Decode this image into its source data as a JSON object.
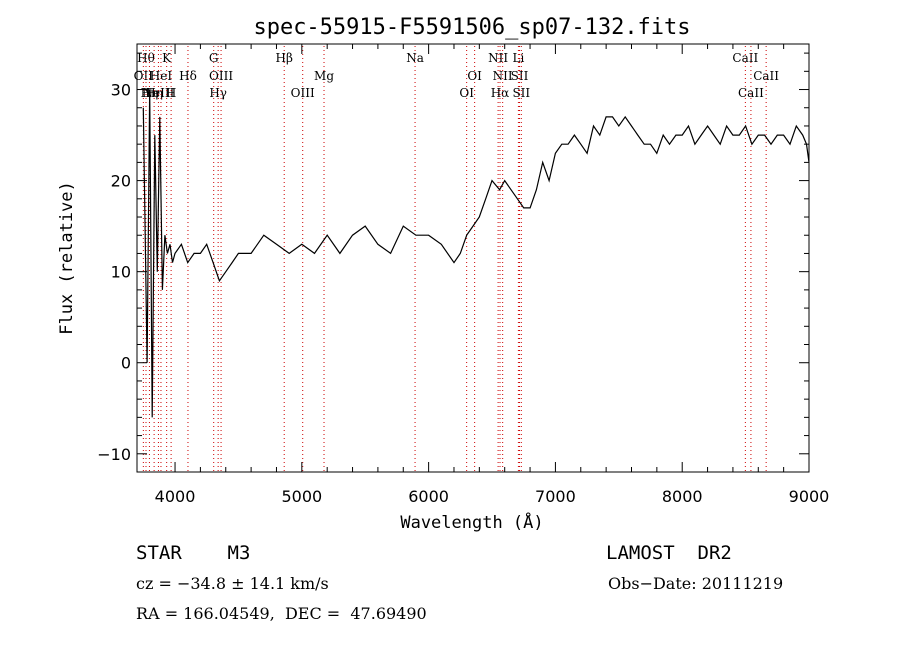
{
  "chart_data": {
    "type": "line",
    "title": "spec-55915-F5591506_sp07-132.fits",
    "xlabel": "Wavelength (Å)",
    "ylabel": "Flux (relative)",
    "xlim": [
      3700,
      9000
    ],
    "ylim": [
      -12,
      35
    ],
    "x_ticks": [
      4000,
      5000,
      6000,
      7000,
      8000,
      9000
    ],
    "y_ticks": [
      -10,
      0,
      10,
      20,
      30
    ],
    "y_tick_labels": [
      "−10",
      "0",
      "10",
      "20",
      "30"
    ],
    "grid": false,
    "line_color": "#000000",
    "marker_color": "#cc0000",
    "series": [
      {
        "x": [
          3750,
          3780,
          3800,
          3820,
          3840,
          3860,
          3880,
          3900,
          3920,
          3940,
          3960,
          3980,
          4000,
          4050,
          4100,
          4150,
          4200,
          4250,
          4300,
          4350,
          4400,
          4450,
          4500,
          4600,
          4700,
          4800,
          4900,
          5000,
          5100,
          5200,
          5300,
          5400,
          5500,
          5600,
          5700,
          5800,
          5900,
          6000,
          6100,
          6200,
          6250,
          6300,
          6350,
          6400,
          6450,
          6500,
          6560,
          6600,
          6650,
          6700,
          6750,
          6800,
          6850,
          6900,
          6950,
          7000,
          7050,
          7100,
          7150,
          7200,
          7250,
          7300,
          7350,
          7400,
          7450,
          7500,
          7550,
          7600,
          7650,
          7700,
          7750,
          7800,
          7850,
          7900,
          7950,
          8000,
          8050,
          8100,
          8150,
          8200,
          8250,
          8300,
          8350,
          8400,
          8450,
          8500,
          8550,
          8600,
          8650,
          8700,
          8750,
          8800,
          8850,
          8900,
          8950,
          8980,
          9000
        ],
        "y": [
          28,
          0,
          30,
          -6,
          25,
          10,
          27,
          8,
          14,
          12,
          13,
          11,
          12,
          13,
          11,
          12,
          12,
          13,
          11,
          9,
          10,
          11,
          12,
          12,
          14,
          13,
          12,
          13,
          12,
          14,
          12,
          14,
          15,
          13,
          12,
          15,
          14,
          14,
          13,
          11,
          12,
          14,
          15,
          16,
          18,
          20,
          19,
          20,
          19,
          18,
          17,
          17,
          19,
          22,
          20,
          23,
          24,
          24,
          25,
          24,
          23,
          26,
          25,
          27,
          27,
          26,
          27,
          26,
          25,
          24,
          24,
          23,
          25,
          24,
          25,
          25,
          26,
          24,
          25,
          26,
          25,
          24,
          26,
          25,
          25,
          26,
          24,
          25,
          25,
          24,
          25,
          25,
          24,
          26,
          25,
          24,
          22
        ]
      }
    ],
    "markers": [
      {
        "wl": 3750,
        "label": "OII",
        "row": 2
      },
      {
        "wl": 3771,
        "label": "Hθ",
        "row": 1
      },
      {
        "wl": 3798,
        "label": "Hη",
        "row": 3
      },
      {
        "wl": 3835,
        "label": "Hη",
        "row": 3
      },
      {
        "wl": 3869,
        "label": "NeIII",
        "row": 3
      },
      {
        "wl": 3889,
        "label": "HeI",
        "row": 2
      },
      {
        "wl": 3934,
        "label": "K",
        "row": 1
      },
      {
        "wl": 3969,
        "label": "H",
        "row": 3
      },
      {
        "wl": 4102,
        "label": "Hδ",
        "row": 2
      },
      {
        "wl": 4305,
        "label": "G",
        "row": 1
      },
      {
        "wl": 4340,
        "label": "Hγ",
        "row": 3
      },
      {
        "wl": 4363,
        "label": "OIII",
        "row": 2
      },
      {
        "wl": 4861,
        "label": "Hβ",
        "row": 1
      },
      {
        "wl": 5007,
        "label": "OIII",
        "row": 3
      },
      {
        "wl": 5175,
        "label": "Mg",
        "row": 2
      },
      {
        "wl": 5893,
        "label": "Na",
        "row": 1
      },
      {
        "wl": 6300,
        "label": "OI",
        "row": 3
      },
      {
        "wl": 6363,
        "label": "OI",
        "row": 2
      },
      {
        "wl": 6548,
        "label": "NII",
        "row": 1
      },
      {
        "wl": 6563,
        "label": "Hα",
        "row": 3
      },
      {
        "wl": 6584,
        "label": "NII",
        "row": 2
      },
      {
        "wl": 6708,
        "label": "Li",
        "row": 1
      },
      {
        "wl": 6717,
        "label": "SII",
        "row": 2
      },
      {
        "wl": 6731,
        "label": "SII",
        "row": 3
      },
      {
        "wl": 8498,
        "label": "CaII",
        "row": 1
      },
      {
        "wl": 8542,
        "label": "CaII",
        "row": 3
      },
      {
        "wl": 8662,
        "label": "CaII",
        "row": 2
      }
    ]
  },
  "info": {
    "object": "STAR    M3",
    "survey": "LAMOST  DR2",
    "cz": "cz = −34.8 ± 14.1 km/s",
    "obs_date": "Obs−Date: 20111219",
    "coords": "RA = 166.04549,  DEC =  47.69490"
  }
}
